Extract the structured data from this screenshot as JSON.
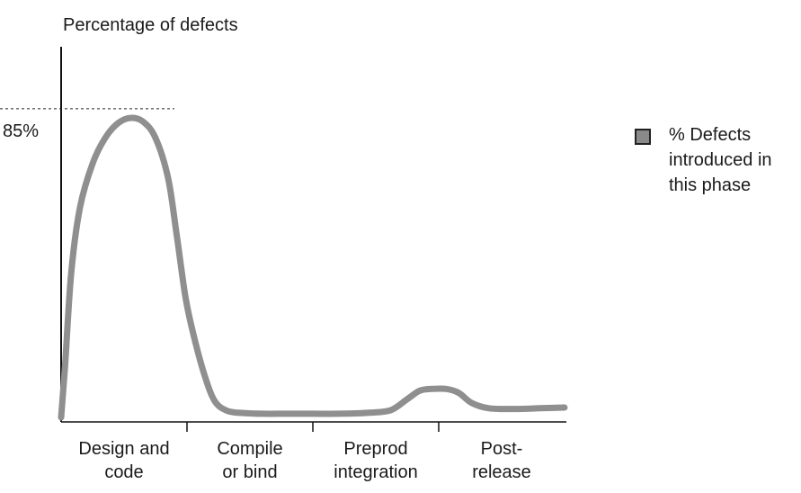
{
  "chart_data": {
    "type": "line",
    "title": "Percentage of defects",
    "xlabel": "",
    "ylabel": "",
    "ylim": [
      0,
      100
    ],
    "y_marker": {
      "value": 85,
      "label": "85%"
    },
    "categories": [
      [
        "Design and",
        "code"
      ],
      [
        "Compile",
        "or bind"
      ],
      [
        "Preprod",
        "integration"
      ],
      [
        "Post-",
        "release"
      ]
    ],
    "x_range": [
      0,
      4
    ],
    "grid": false,
    "legend_position": "right",
    "series": [
      {
        "name": "% Defects introduced in this phase",
        "color": "#8f8f8f",
        "points": [
          [
            0.0,
            0.5
          ],
          [
            0.03,
            14
          ],
          [
            0.08,
            40
          ],
          [
            0.15,
            58
          ],
          [
            0.25,
            70
          ],
          [
            0.35,
            77
          ],
          [
            0.45,
            81
          ],
          [
            0.55,
            82.5
          ],
          [
            0.65,
            81.5
          ],
          [
            0.75,
            77
          ],
          [
            0.85,
            66
          ],
          [
            0.92,
            50
          ],
          [
            0.99,
            33
          ],
          [
            1.06,
            22
          ],
          [
            1.14,
            12
          ],
          [
            1.22,
            5
          ],
          [
            1.32,
            2.3
          ],
          [
            1.45,
            1.7
          ],
          [
            1.6,
            1.5
          ],
          [
            1.8,
            1.5
          ],
          [
            2.0,
            1.5
          ],
          [
            2.2,
            1.5
          ],
          [
            2.45,
            1.8
          ],
          [
            2.62,
            2.5
          ],
          [
            2.75,
            5.5
          ],
          [
            2.85,
            7.8
          ],
          [
            2.95,
            8.3
          ],
          [
            3.06,
            8.3
          ],
          [
            3.16,
            7.2
          ],
          [
            3.26,
            4.5
          ],
          [
            3.4,
            3.0
          ],
          [
            3.6,
            2.8
          ],
          [
            3.8,
            3.0
          ],
          [
            4.0,
            3.2
          ]
        ]
      }
    ]
  },
  "legend": {
    "swatch_color": "#8a8a8a",
    "label": "% Defects introduced in this phase"
  }
}
